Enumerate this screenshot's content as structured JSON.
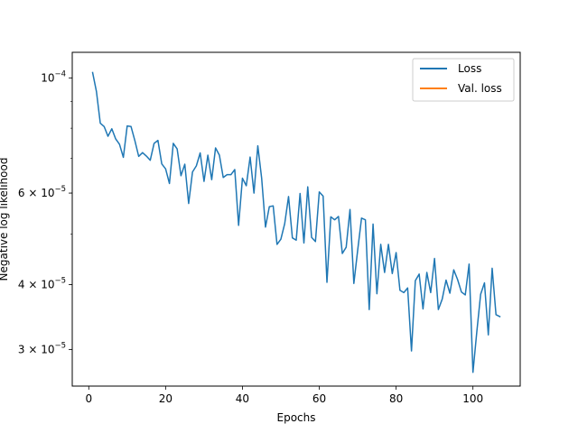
{
  "chart_data": {
    "type": "line",
    "title": "",
    "xlabel": "Epochs",
    "ylabel": "Negative log likelihood",
    "y_scale": "log",
    "xlim": [
      -4.3,
      112.3
    ],
    "ylim": [
      2.55e-05,
      0.000112
    ],
    "x_ticks": [
      0,
      20,
      40,
      60,
      80,
      100
    ],
    "x_tick_labels": [
      "0",
      "20",
      "40",
      "60",
      "80",
      "100"
    ],
    "y_ticks": [
      3e-05,
      4e-05,
      6e-05,
      0.0001
    ],
    "y_tick_labels": [
      {
        "base": "3 × 10",
        "exp": "−5"
      },
      {
        "base": "4 × 10",
        "exp": "−5"
      },
      {
        "base": "6 × 10",
        "exp": "−5"
      },
      {
        "base": "10",
        "exp": "−4"
      }
    ],
    "grid": false,
    "legend": {
      "position": "top-right",
      "entries": [
        {
          "label": "Loss",
          "color": "#1f77b4"
        },
        {
          "label": "Val. loss",
          "color": "#ff7f0e"
        }
      ]
    },
    "series": [
      {
        "name": "Loss",
        "color": "#1f77b4",
        "x": [
          1,
          2,
          3,
          4,
          5,
          6,
          7,
          8,
          9,
          10,
          11,
          12,
          13,
          14,
          15,
          16,
          17,
          18,
          19,
          20,
          21,
          22,
          23,
          24,
          25,
          26,
          27,
          28,
          29,
          30,
          31,
          32,
          33,
          34,
          35,
          36,
          37,
          38,
          39,
          40,
          41,
          42,
          43,
          44,
          45,
          46,
          47,
          48,
          49,
          50,
          51,
          52,
          53,
          54,
          55,
          56,
          57,
          58,
          59,
          60,
          61,
          62,
          63,
          64,
          65,
          66,
          67,
          68,
          69,
          70,
          71,
          72,
          73,
          74,
          75,
          76,
          77,
          78,
          79,
          80,
          81,
          82,
          83,
          84,
          85,
          86,
          87,
          88,
          89,
          90,
          91,
          92,
          93,
          94,
          95,
          96,
          97,
          98,
          99,
          100,
          101,
          102,
          103,
          104,
          105,
          106,
          107
        ],
        "y": [
          0.0001024,
          9.41e-05,
          8.18e-05,
          8.06e-05,
          7.72e-05,
          7.98e-05,
          7.63e-05,
          7.45e-05,
          7.03e-05,
          8.08e-05,
          8.06e-05,
          7.57e-05,
          7.06e-05,
          7.18e-05,
          7.07e-05,
          6.94e-05,
          7.48e-05,
          7.58e-05,
          6.83e-05,
          6.68e-05,
          6.26e-05,
          7.48e-05,
          7.3e-05,
          6.48e-05,
          6.82e-05,
          5.73e-05,
          6.59e-05,
          6.77e-05,
          7.17e-05,
          6.32e-05,
          7.1e-05,
          6.37e-05,
          7.33e-05,
          7.1e-05,
          6.43e-05,
          6.51e-05,
          6.51e-05,
          6.66e-05,
          5.2e-05,
          6.41e-05,
          6.2e-05,
          7.04e-05,
          6e-05,
          7.4e-05,
          6.41e-05,
          5.16e-05,
          5.65e-05,
          5.67e-05,
          4.78e-05,
          4.89e-05,
          5.24e-05,
          5.91e-05,
          4.92e-05,
          4.87e-05,
          5.99e-05,
          4.81e-05,
          6.17e-05,
          4.93e-05,
          4.84e-05,
          6.03e-05,
          5.92e-05,
          4.04e-05,
          5.4e-05,
          5.33e-05,
          5.41e-05,
          4.59e-05,
          4.72e-05,
          5.58e-05,
          4.02e-05,
          4.66e-05,
          5.37e-05,
          5.33e-05,
          3.58e-05,
          5.23e-05,
          3.84e-05,
          4.78e-05,
          4.22e-05,
          4.78e-05,
          4.2e-05,
          4.61e-05,
          3.9e-05,
          3.86e-05,
          3.94e-05,
          2.98e-05,
          4.07e-05,
          4.19e-05,
          3.59e-05,
          4.22e-05,
          3.86e-05,
          4.49e-05,
          3.58e-05,
          3.75e-05,
          4.08e-05,
          3.85e-05,
          4.27e-05,
          4.09e-05,
          3.87e-05,
          3.82e-05,
          4.38e-05,
          2.71e-05,
          3.24e-05,
          3.83e-05,
          4.03e-05,
          3.2e-05,
          4.3e-05,
          3.5e-05,
          3.47e-05
        ]
      },
      {
        "name": "Val. loss",
        "color": "#ff7f0e",
        "x": [],
        "y": []
      }
    ]
  }
}
